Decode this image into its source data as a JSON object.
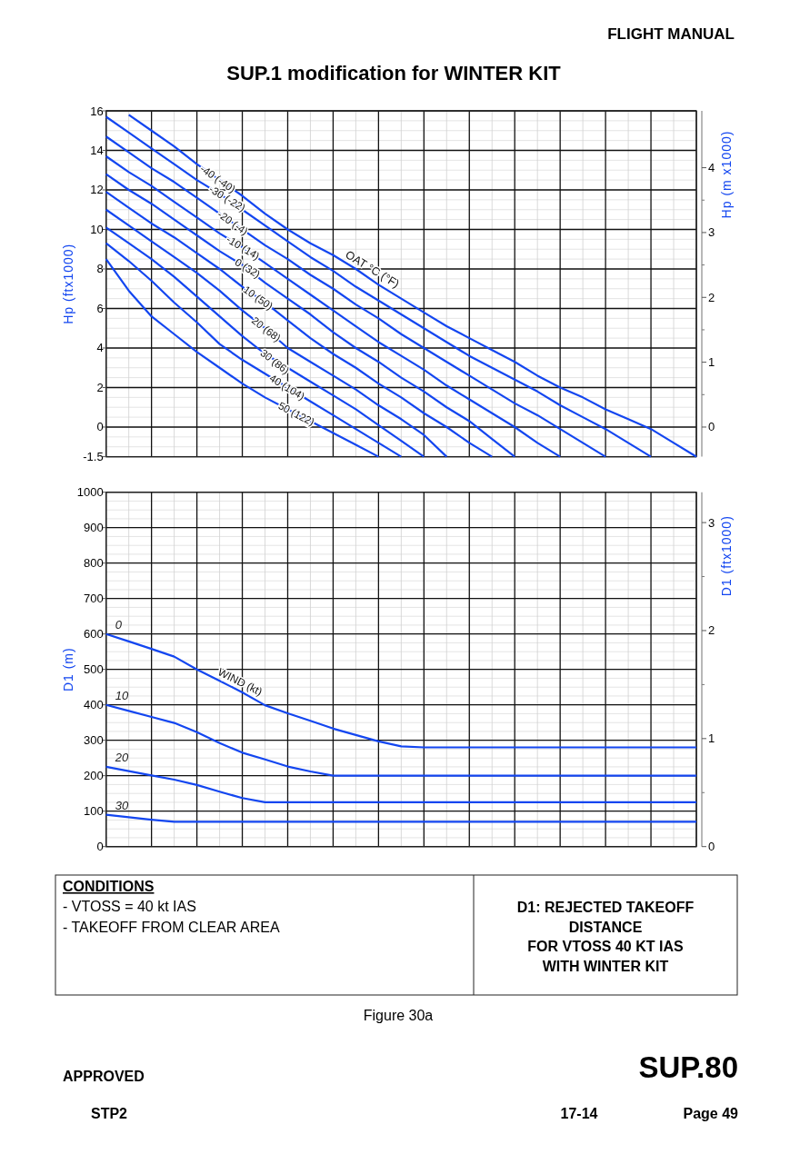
{
  "chart_data": [
    {
      "type": "line",
      "title": "SUP.1 modification for WINTER KIT",
      "ylabel": "Hp (ftx1000)",
      "y2label": "Hp (m x1000)",
      "categories": [
        null,
        null,
        null,
        null,
        null,
        null,
        null,
        null,
        null,
        null,
        null,
        null,
        null,
        null,
        null,
        null,
        null,
        null,
        null,
        null,
        null,
        null,
        null,
        null,
        null,
        null,
        null
      ],
      "ylim": [
        -1.5,
        16
      ],
      "yticks": [
        -1.5,
        0,
        2,
        4,
        6,
        8,
        10,
        12,
        14,
        16
      ],
      "y2lim": [
        -0.4572,
        4.8768
      ],
      "y2ticks": [
        0,
        1,
        2,
        3,
        4
      ],
      "tick_labels": "y",
      "grid": true,
      "legend": false,
      "series": [
        {
          "name": "-40 (-40)",
          "color": "#1346f0",
          "values": [
            null,
            15.8,
            15.0,
            14.2,
            13.3,
            12.5,
            11.7,
            10.8,
            10,
            9.3,
            8.7,
            8,
            7.2,
            6.5,
            5.8,
            5.1,
            4.5,
            3.9,
            3.3,
            2.6,
            2,
            1.5,
            0.9,
            0.4,
            -0.1,
            -0.8,
            -1.5
          ]
        },
        {
          "name": "-30 (-22)",
          "color": "#1346f0",
          "values": [
            15.7,
            14.9,
            14.1,
            13.3,
            12.5,
            11.8,
            11.0,
            10.2,
            9.4,
            8.6,
            7.9,
            7.1,
            6.4,
            5.7,
            5.0,
            4.3,
            3.6,
            3.0,
            2.4,
            1.8,
            1.1,
            0.5,
            -0.1,
            -0.8,
            -1.5,
            null,
            null
          ]
        },
        {
          "name": "-20 (-4)",
          "color": "#1346f0",
          "values": [
            14.7,
            13.9,
            13.1,
            12.4,
            11.6,
            10.8,
            10.0,
            9.2,
            8.5,
            7.7,
            7.0,
            6.2,
            5.5,
            4.7,
            4.0,
            3.3,
            2.6,
            1.9,
            1.2,
            0.6,
            -0.1,
            -0.8,
            -1.5,
            null,
            null,
            null,
            null
          ]
        },
        {
          "name": "-10 (14)",
          "color": "#1346f0",
          "values": [
            13.7,
            12.9,
            12.2,
            11.4,
            10.6,
            9.8,
            9.1,
            8.3,
            7.5,
            6.7,
            5.9,
            5.1,
            4.3,
            3.6,
            2.9,
            2.1,
            1.4,
            0.7,
            0,
            -0.8,
            -1.5,
            null,
            null,
            null,
            null,
            null,
            null
          ]
        },
        {
          "name": "0 (32)",
          "color": "#1346f0",
          "values": [
            12.8,
            12.0,
            11.3,
            10.5,
            9.7,
            8.9,
            8.2,
            7.3,
            6.5,
            5.7,
            4.8,
            4.0,
            3.3,
            2.5,
            1.8,
            1.0,
            0.3,
            -0.6,
            -1.5,
            null,
            null,
            null,
            null,
            null,
            null,
            null,
            null
          ]
        },
        {
          "name": "10 (50)",
          "color": "#1346f0",
          "values": [
            11.9,
            11.1,
            10.3,
            9.6,
            8.8,
            8.0,
            7.1,
            6.3,
            5.4,
            4.5,
            3.7,
            3.0,
            2.2,
            1.5,
            0.7,
            0,
            -0.8,
            -1.5,
            null,
            null,
            null,
            null,
            null,
            null,
            null,
            null,
            null
          ]
        },
        {
          "name": "20 (68)",
          "color": "#1346f0",
          "values": [
            11.0,
            10.2,
            9.4,
            8.6,
            7.8,
            6.9,
            5.9,
            5.0,
            4.0,
            3.3,
            2.6,
            1.9,
            1.1,
            0.4,
            -0.4,
            -1.5,
            null,
            null,
            null,
            null,
            null,
            null,
            null,
            null,
            null,
            null,
            null
          ]
        },
        {
          "name": "30 (86)",
          "color": "#1346f0",
          "values": [
            10.1,
            9.3,
            8.5,
            7.6,
            6.6,
            5.6,
            4.6,
            3.7,
            3.0,
            2.3,
            1.6,
            0.9,
            0.1,
            -0.7,
            -1.5,
            null,
            null,
            null,
            null,
            null,
            null,
            null,
            null,
            null,
            null,
            null,
            null
          ]
        },
        {
          "name": "40 (104)",
          "color": "#1346f0",
          "values": [
            9.3,
            8.4,
            7.4,
            6.3,
            5.3,
            4.2,
            3.4,
            2.7,
            2.0,
            1.3,
            0.6,
            -0.1,
            -0.8,
            -1.5,
            null,
            null,
            null,
            null,
            null,
            null,
            null,
            null,
            null,
            null,
            null,
            null,
            null
          ]
        },
        {
          "name": "50 (122)",
          "color": "#1346f0",
          "values": [
            8.5,
            6.9,
            5.6,
            4.7,
            3.8,
            3.0,
            2.2,
            1.5,
            0.9,
            0.3,
            -0.3,
            -0.9,
            -1.5,
            null,
            null,
            null,
            null,
            null,
            null,
            null,
            null,
            null,
            null,
            null,
            null,
            null,
            null
          ]
        }
      ],
      "annotations": [
        "FLIGHT MANUAL",
        "OAT °C (°F)"
      ]
    },
    {
      "type": "line",
      "ylabel": "D1 (m)",
      "y2label": "D1 (ftx1000)",
      "categories": [
        null,
        null,
        null,
        null,
        null,
        null,
        null,
        null,
        null,
        null,
        null,
        null,
        null,
        null,
        null,
        null,
        null,
        null,
        null,
        null,
        null,
        null,
        null,
        null,
        null,
        null,
        null
      ],
      "ylim": [
        0,
        1000
      ],
      "yticks": [
        0,
        100,
        200,
        300,
        400,
        500,
        600,
        700,
        800,
        900,
        1000
      ],
      "y2lim": [
        0,
        3.281
      ],
      "y2ticks": [
        0,
        1,
        2,
        3
      ],
      "tick_labels": "y",
      "grid": true,
      "legend": false,
      "series": [
        {
          "name": "0",
          "color": "#1346f0",
          "values": [
            600,
            579,
            558,
            536,
            500,
            468,
            435,
            399,
            376,
            355,
            333,
            315,
            297,
            283,
            280,
            280,
            280,
            280,
            280,
            280,
            280,
            280,
            280,
            280,
            280,
            280,
            280
          ]
        },
        {
          "name": "10",
          "color": "#1346f0",
          "values": [
            400,
            383,
            366,
            349,
            323,
            292,
            265,
            246,
            226,
            212,
            200,
            200,
            200,
            200,
            200,
            200,
            200,
            200,
            200,
            200,
            200,
            200,
            200,
            200,
            200,
            200,
            200
          ]
        },
        {
          "name": "20",
          "color": "#1346f0",
          "values": [
            225,
            213,
            201,
            189,
            174,
            155,
            137,
            125,
            125,
            125,
            125,
            125,
            125,
            125,
            125,
            125,
            125,
            125,
            125,
            125,
            125,
            125,
            125,
            125,
            125,
            125,
            125
          ]
        },
        {
          "name": "30",
          "color": "#1346f0",
          "values": [
            90,
            83,
            76,
            70,
            70,
            70,
            70,
            70,
            70,
            70,
            70,
            70,
            70,
            70,
            70,
            70,
            70,
            70,
            70,
            70,
            70,
            70,
            70,
            70,
            70,
            70,
            70
          ]
        }
      ],
      "annotations": [
        "WIND (kt)",
        "CONDITIONS",
        "- VTOSS = 40 kt IAS",
        "- TAKEOFF FROM CLEAR AREA",
        "D1: REJECTED TAKEOFF\nDISTANCE\nFOR VTOSS 40 KT IAS\nWITH WINTER KIT",
        "Figure 30a",
        "APPROVED",
        "SUP.80",
        "STP2",
        "17-14",
        "Page 49"
      ]
    }
  ]
}
